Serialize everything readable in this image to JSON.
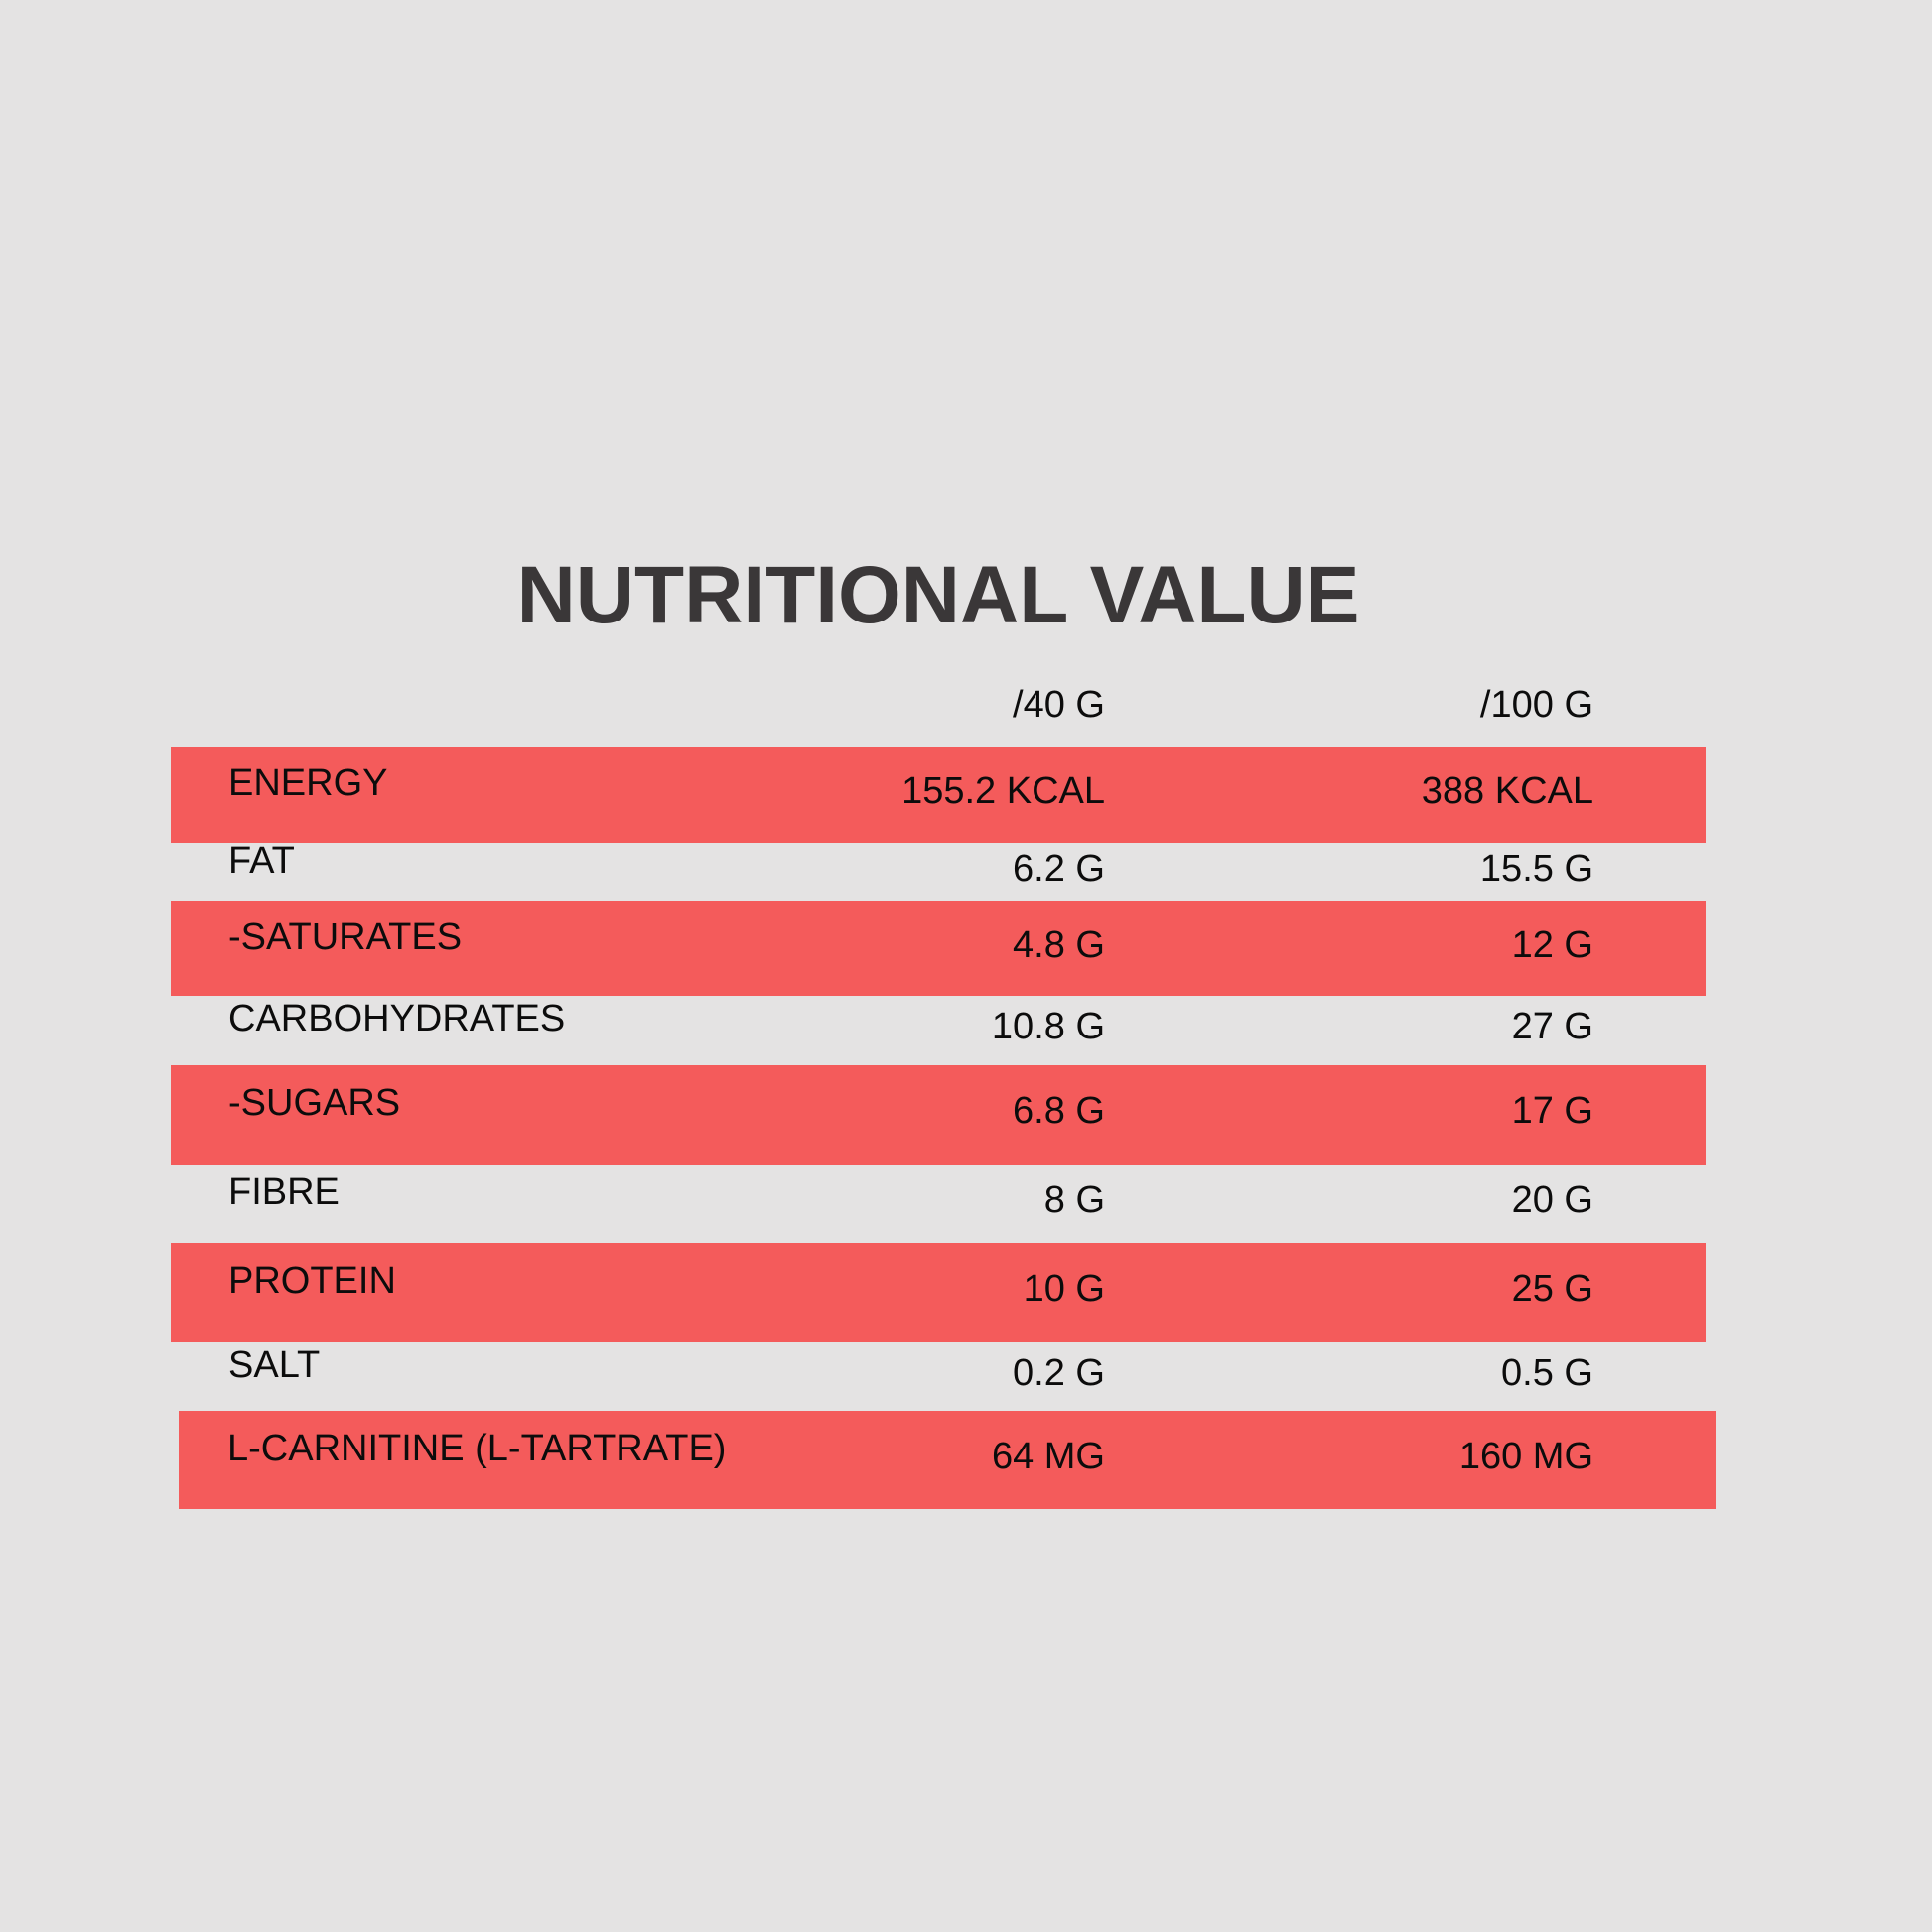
{
  "page": {
    "background_color": "#e4e3e3",
    "accent_color": "#f45b5b",
    "title_color": "#3a3738",
    "text_color": "#0c0c0c"
  },
  "title": "NUTRITIONAL VALUE",
  "table": {
    "columns": {
      "per40g": "/40 G",
      "per100g": "/100 G"
    },
    "rows": [
      {
        "label": "ENERGY",
        "per40g": "155.2 KCAL",
        "per100g": "388 KCAL",
        "highlight": true
      },
      {
        "label": "FAT",
        "per40g": "6.2 G",
        "per100g": "15.5 G",
        "highlight": false
      },
      {
        "label": "-SATURATES",
        "per40g": "4.8 G",
        "per100g": "12 G",
        "highlight": true
      },
      {
        "label": "CARBOHYDRATES",
        "per40g": "10.8 G",
        "per100g": "27 G",
        "highlight": false
      },
      {
        "label": "-SUGARS",
        "per40g": "6.8 G",
        "per100g": "17 G",
        "highlight": true
      },
      {
        "label": "FIBRE",
        "per40g": "8 G",
        "per100g": "20 G",
        "highlight": false
      },
      {
        "label": "PROTEIN",
        "per40g": "10 G",
        "per100g": "25 G",
        "highlight": true
      },
      {
        "label": "SALT",
        "per40g": "0.2 G",
        "per100g": "0.5 G",
        "highlight": false
      },
      {
        "label": "L-CARNITINE (L-TARTRATE)",
        "per40g": "64 MG",
        "per100g": "160 MG",
        "highlight": true
      }
    ]
  }
}
